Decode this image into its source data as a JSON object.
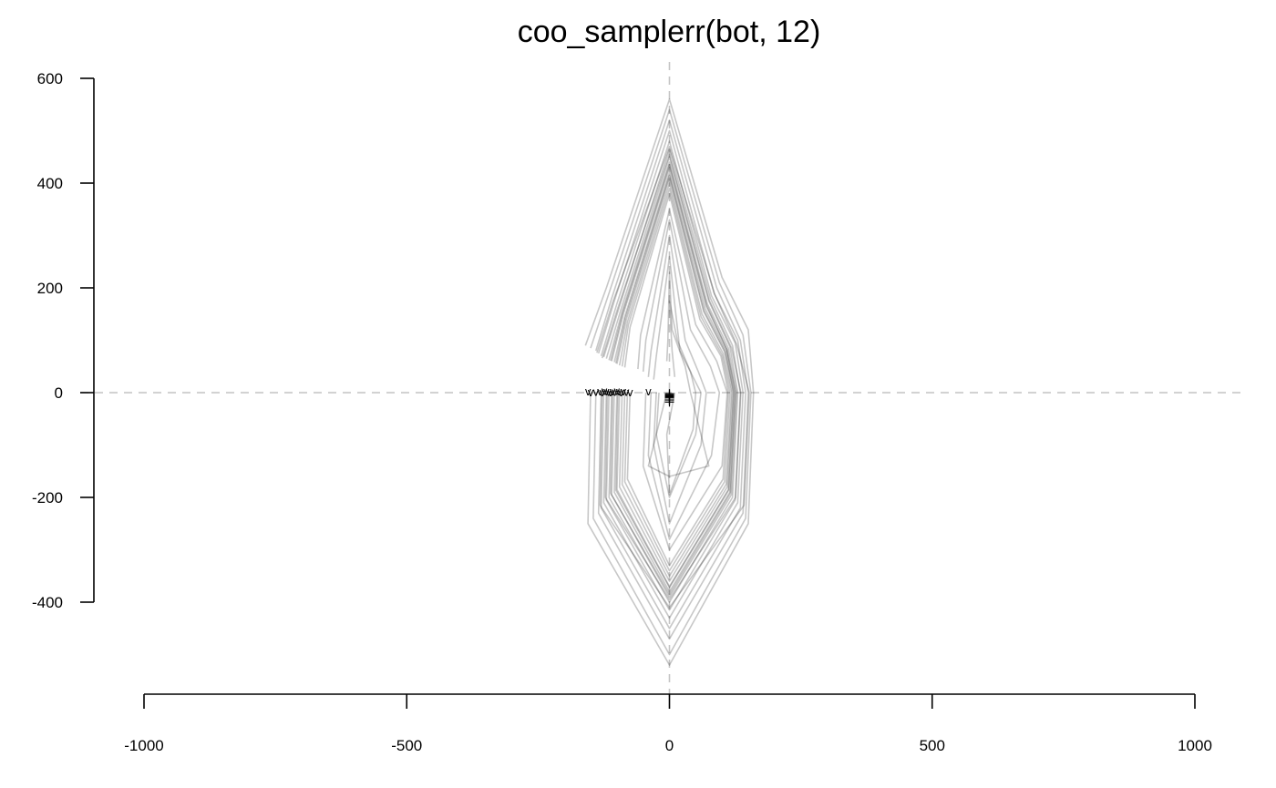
{
  "chart_data": {
    "type": "line",
    "title": "coo_samplerr(bot, 12)",
    "xlabel": "",
    "ylabel": "",
    "xlim": [
      -1000,
      1000
    ],
    "ylim": [
      -400,
      600
    ],
    "x_ticks": [
      "-1000",
      "-500",
      "0",
      "500",
      "1000"
    ],
    "y_ticks": [
      "600",
      "400",
      "200",
      "0",
      "-200",
      "-400"
    ],
    "reference_lines": {
      "x": 0,
      "y": 0,
      "style": "dashed"
    },
    "grid": false,
    "legend": "none",
    "series_color": "#000000",
    "series_opacity": 0.22,
    "start_marker_symbol": "v",
    "center_marker_symbol": "+",
    "series": [
      {
        "points": [
          [
            -150,
            0
          ],
          [
            -155,
            -250
          ],
          [
            0,
            -520
          ],
          [
            150,
            -250
          ],
          [
            160,
            0
          ],
          [
            150,
            120
          ],
          [
            100,
            220
          ],
          [
            0,
            560
          ],
          [
            -120,
            200
          ],
          [
            -160,
            90
          ]
        ]
      },
      {
        "points": [
          [
            -140,
            0
          ],
          [
            -145,
            -240
          ],
          [
            0,
            -500
          ],
          [
            145,
            -240
          ],
          [
            155,
            0
          ],
          [
            140,
            110
          ],
          [
            95,
            210
          ],
          [
            0,
            540
          ],
          [
            -115,
            190
          ],
          [
            -150,
            85
          ]
        ]
      },
      {
        "points": [
          [
            -130,
            0
          ],
          [
            -135,
            -230
          ],
          [
            0,
            -470
          ],
          [
            140,
            -230
          ],
          [
            150,
            0
          ],
          [
            135,
            100
          ],
          [
            90,
            200
          ],
          [
            0,
            520
          ],
          [
            -110,
            180
          ],
          [
            -140,
            80
          ]
        ]
      },
      {
        "points": [
          [
            -125,
            0
          ],
          [
            -130,
            -220
          ],
          [
            0,
            -450
          ],
          [
            135,
            -220
          ],
          [
            145,
            0
          ],
          [
            130,
            100
          ],
          [
            85,
            190
          ],
          [
            0,
            500
          ],
          [
            -105,
            175
          ],
          [
            -135,
            75
          ]
        ]
      },
      {
        "points": [
          [
            -120,
            0
          ],
          [
            -125,
            -210
          ],
          [
            0,
            -430
          ],
          [
            130,
            -210
          ],
          [
            140,
            0
          ],
          [
            125,
            95
          ],
          [
            80,
            185
          ],
          [
            0,
            480
          ],
          [
            -100,
            170
          ],
          [
            -130,
            70
          ]
        ]
      },
      {
        "points": [
          [
            -115,
            0
          ],
          [
            -120,
            -205
          ],
          [
            0,
            -415
          ],
          [
            125,
            -205
          ],
          [
            135,
            0
          ],
          [
            120,
            90
          ],
          [
            78,
            180
          ],
          [
            0,
            465
          ],
          [
            -95,
            165
          ],
          [
            -125,
            68
          ]
        ]
      },
      {
        "points": [
          [
            -110,
            0
          ],
          [
            -115,
            -200
          ],
          [
            0,
            -400
          ],
          [
            120,
            -200
          ],
          [
            130,
            0
          ],
          [
            115,
            88
          ],
          [
            75,
            175
          ],
          [
            0,
            450
          ],
          [
            -92,
            160
          ],
          [
            -120,
            65
          ]
        ]
      },
      {
        "points": [
          [
            -105,
            0
          ],
          [
            -110,
            -195
          ],
          [
            0,
            -390
          ],
          [
            118,
            -195
          ],
          [
            128,
            0
          ],
          [
            112,
            85
          ],
          [
            72,
            170
          ],
          [
            0,
            440
          ],
          [
            -90,
            155
          ],
          [
            -115,
            62
          ]
        ]
      },
      {
        "points": [
          [
            -100,
            0
          ],
          [
            -105,
            -190
          ],
          [
            0,
            -380
          ],
          [
            115,
            -190
          ],
          [
            125,
            0
          ],
          [
            110,
            82
          ],
          [
            70,
            165
          ],
          [
            0,
            430
          ],
          [
            -88,
            150
          ],
          [
            -110,
            60
          ]
        ]
      },
      {
        "points": [
          [
            -95,
            0
          ],
          [
            -100,
            -185
          ],
          [
            0,
            -370
          ],
          [
            112,
            -185
          ],
          [
            122,
            0
          ],
          [
            108,
            80
          ],
          [
            68,
            160
          ],
          [
            0,
            420
          ],
          [
            -85,
            145
          ],
          [
            -105,
            58
          ]
        ]
      },
      {
        "points": [
          [
            -90,
            0
          ],
          [
            -95,
            -180
          ],
          [
            0,
            -360
          ],
          [
            110,
            -180
          ],
          [
            120,
            0
          ],
          [
            105,
            78
          ],
          [
            65,
            155
          ],
          [
            0,
            410
          ],
          [
            -82,
            140
          ],
          [
            -100,
            55
          ]
        ]
      },
      {
        "points": [
          [
            -85,
            0
          ],
          [
            -90,
            -175
          ],
          [
            0,
            -350
          ],
          [
            108,
            -175
          ],
          [
            118,
            0
          ],
          [
            102,
            75
          ],
          [
            62,
            150
          ],
          [
            0,
            400
          ],
          [
            -80,
            135
          ],
          [
            -95,
            52
          ]
        ]
      },
      {
        "points": [
          [
            -80,
            0
          ],
          [
            -85,
            -170
          ],
          [
            0,
            -340
          ],
          [
            105,
            -170
          ],
          [
            115,
            0
          ],
          [
            100,
            72
          ],
          [
            60,
            145
          ],
          [
            0,
            390
          ],
          [
            -78,
            130
          ],
          [
            -90,
            50
          ]
        ]
      },
      {
        "points": [
          [
            -75,
            0
          ],
          [
            -80,
            -165
          ],
          [
            0,
            -330
          ],
          [
            102,
            -165
          ],
          [
            112,
            0
          ],
          [
            98,
            70
          ],
          [
            58,
            140
          ],
          [
            0,
            380
          ],
          [
            -75,
            125
          ],
          [
            -85,
            48
          ]
        ]
      },
      {
        "points": [
          [
            -128,
            0
          ],
          [
            -132,
            -215
          ],
          [
            0,
            -410
          ],
          [
            142,
            -215
          ],
          [
            152,
            0
          ],
          [
            128,
            92
          ],
          [
            86,
            188
          ],
          [
            0,
            470
          ],
          [
            -108,
            172
          ],
          [
            -138,
            76
          ]
        ]
      },
      {
        "points": [
          [
            -118,
            0
          ],
          [
            -122,
            -200
          ],
          [
            0,
            -395
          ],
          [
            126,
            -200
          ],
          [
            136,
            0
          ],
          [
            118,
            86
          ],
          [
            76,
            176
          ],
          [
            0,
            455
          ],
          [
            -98,
            162
          ],
          [
            -128,
            66
          ]
        ]
      },
      {
        "points": [
          [
            -108,
            0
          ],
          [
            -112,
            -192
          ],
          [
            0,
            -385
          ],
          [
            116,
            -192
          ],
          [
            126,
            0
          ],
          [
            109,
            83
          ],
          [
            71,
            167
          ],
          [
            0,
            435
          ],
          [
            -89,
            152
          ],
          [
            -112,
            61
          ]
        ]
      },
      {
        "points": [
          [
            -98,
            0
          ],
          [
            -102,
            -186
          ],
          [
            0,
            -372
          ],
          [
            113,
            -186
          ],
          [
            123,
            0
          ],
          [
            106,
            79
          ],
          [
            66,
            157
          ],
          [
            0,
            415
          ],
          [
            -84,
            142
          ],
          [
            -102,
            56
          ]
        ]
      },
      {
        "points": [
          [
            -35,
            0
          ],
          [
            -40,
            -120
          ],
          [
            0,
            -280
          ],
          [
            80,
            -120
          ],
          [
            95,
            0
          ],
          [
            78,
            50
          ],
          [
            40,
            120
          ],
          [
            0,
            330
          ],
          [
            -45,
            100
          ],
          [
            -50,
            40
          ]
        ]
      },
      {
        "points": [
          [
            -25,
            0
          ],
          [
            -30,
            -100
          ],
          [
            0,
            -250
          ],
          [
            60,
            -100
          ],
          [
            70,
            0
          ],
          [
            55,
            40
          ],
          [
            30,
            100
          ],
          [
            0,
            300
          ],
          [
            -35,
            80
          ],
          [
            -40,
            30
          ]
        ]
      },
      {
        "points": [
          [
            -45,
            0
          ],
          [
            -50,
            -140
          ],
          [
            0,
            -300
          ],
          [
            100,
            -140
          ],
          [
            110,
            0
          ],
          [
            90,
            60
          ],
          [
            50,
            130
          ],
          [
            0,
            350
          ],
          [
            -55,
            110
          ],
          [
            -60,
            45
          ]
        ]
      },
      {
        "points": [
          [
            -5,
            0
          ],
          [
            -40,
            -140
          ],
          [
            0,
            -160
          ],
          [
            75,
            -140
          ],
          [
            40,
            0
          ],
          [
            30,
            50
          ],
          [
            5,
            120
          ],
          [
            0,
            230
          ],
          [
            -3,
            100
          ],
          [
            -5,
            60
          ]
        ]
      },
      {
        "points": [
          [
            10,
            0
          ],
          [
            -5,
            -80
          ],
          [
            0,
            -195
          ],
          [
            45,
            -70
          ],
          [
            50,
            0
          ],
          [
            40,
            40
          ],
          [
            15,
            100
          ],
          [
            0,
            175
          ],
          [
            5,
            80
          ],
          [
            10,
            30
          ]
        ]
      },
      {
        "points": [
          [
            -20,
            0
          ],
          [
            -25,
            -80
          ],
          [
            0,
            -200
          ],
          [
            50,
            -80
          ],
          [
            60,
            0
          ],
          [
            45,
            30
          ],
          [
            20,
            80
          ],
          [
            0,
            260
          ],
          [
            -25,
            70
          ],
          [
            -30,
            25
          ]
        ]
      }
    ],
    "start_markers": [
      [
        -155,
        2
      ],
      [
        -150,
        0
      ],
      [
        -140,
        1
      ],
      [
        -132,
        2
      ],
      [
        -128,
        0
      ],
      [
        -124,
        3
      ],
      [
        -120,
        2
      ],
      [
        -116,
        1
      ],
      [
        -112,
        0
      ],
      [
        -108,
        2
      ],
      [
        -104,
        1
      ],
      [
        -100,
        3
      ],
      [
        -96,
        2
      ],
      [
        -92,
        0
      ],
      [
        -88,
        2
      ],
      [
        -82,
        1
      ],
      [
        -75,
        0
      ],
      [
        -40,
        2
      ]
    ],
    "center_markers": [
      [
        0,
        -2
      ],
      [
        0,
        -6
      ],
      [
        0,
        -10
      ],
      [
        0,
        -14
      ],
      [
        0,
        -18
      ],
      [
        0,
        -8
      ],
      [
        0,
        -4
      ]
    ]
  }
}
